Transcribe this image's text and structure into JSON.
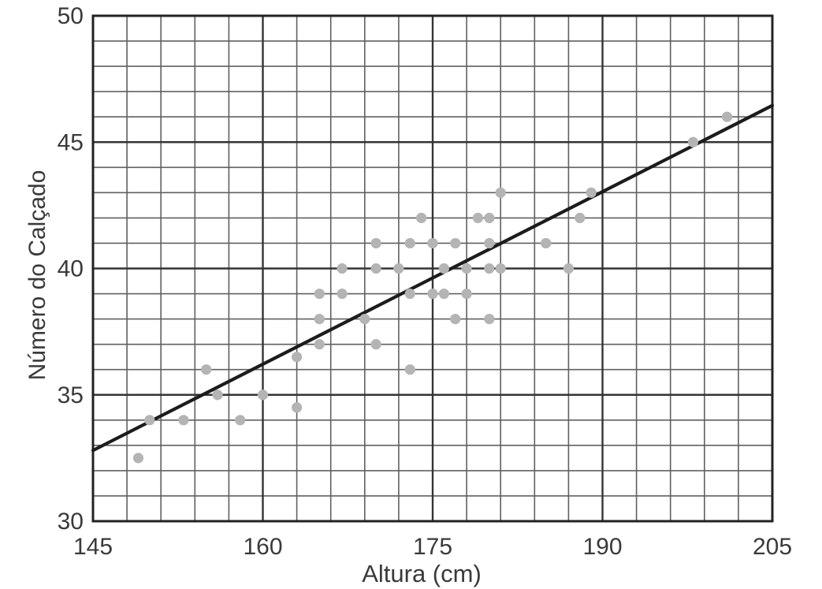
{
  "chart_data": {
    "type": "scatter",
    "title": "",
    "xlabel": "Altura (cm)",
    "ylabel": "Número do Calçado",
    "xlim": [
      145,
      205
    ],
    "ylim": [
      30,
      50
    ],
    "x_ticks": [
      145,
      160,
      175,
      190,
      205
    ],
    "y_ticks": [
      30,
      35,
      40,
      45,
      50
    ],
    "x_minor_step": 3,
    "y_minor_step": 1,
    "grid": true,
    "legend": "none",
    "points": [
      [
        149,
        32.5
      ],
      [
        150,
        34
      ],
      [
        153,
        34
      ],
      [
        155,
        36
      ],
      [
        156,
        35
      ],
      [
        158,
        34
      ],
      [
        160,
        35
      ],
      [
        163,
        34.5
      ],
      [
        163,
        36.5
      ],
      [
        165,
        37
      ],
      [
        165,
        38
      ],
      [
        165,
        39
      ],
      [
        167,
        39
      ],
      [
        167,
        40
      ],
      [
        169,
        38
      ],
      [
        170,
        37
      ],
      [
        170,
        40
      ],
      [
        170,
        41
      ],
      [
        172,
        40
      ],
      [
        173,
        36
      ],
      [
        173,
        39
      ],
      [
        173,
        41
      ],
      [
        174,
        42
      ],
      [
        175,
        39
      ],
      [
        175,
        41
      ],
      [
        176,
        39
      ],
      [
        176,
        40
      ],
      [
        177,
        38
      ],
      [
        177,
        41
      ],
      [
        178,
        39
      ],
      [
        178,
        40
      ],
      [
        179,
        42
      ],
      [
        180,
        38
      ],
      [
        180,
        40
      ],
      [
        180,
        41
      ],
      [
        180,
        42
      ],
      [
        181,
        40
      ],
      [
        181,
        43
      ],
      [
        185,
        41
      ],
      [
        187,
        40
      ],
      [
        188,
        42
      ],
      [
        189,
        43
      ],
      [
        198,
        45
      ],
      [
        201,
        46
      ]
    ],
    "trendline": {
      "x1": 145,
      "y1": 32.8,
      "x2": 205,
      "y2": 46.45
    },
    "colors": {
      "point": "#b4b4b4",
      "trend": "#1c1c1c",
      "grid_minor": "#606060",
      "grid_major": "#343434",
      "frame": "#222222",
      "text": "#3a3a3a"
    }
  }
}
